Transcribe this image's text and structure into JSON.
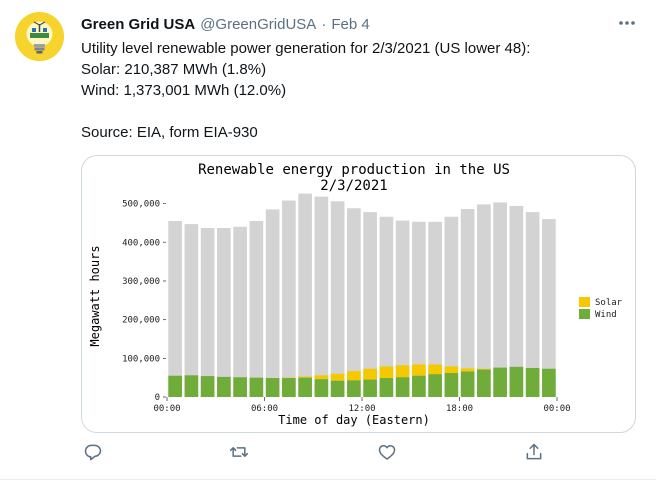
{
  "author": {
    "name": "Green Grid USA",
    "handle": "@GreenGridUSA",
    "separator": "·",
    "timestamp": "Feb 4"
  },
  "tweet": {
    "lines": [
      "Utility level renewable power generation for 2/3/2021 (US lower 48):",
      "Solar: 210,387 MWh (1.8%)",
      "Wind: 1,373,001 MWh (12.0%)",
      "",
      "Source: EIA, form EIA-930"
    ]
  },
  "icons": {
    "more": "more-icon",
    "reply": "reply-icon",
    "retweet": "retweet-icon",
    "like": "heart-icon",
    "share": "share-icon"
  },
  "colors": {
    "total": "#d3d3d3",
    "solar": "#f5c800",
    "wind": "#6fac3a",
    "icon_gray": "#5b7083"
  },
  "chart_data": {
    "type": "bar",
    "title": "Renewable energy production in the US",
    "subtitle": "2/3/2021",
    "xlabel": "Time of day (Eastern)",
    "ylabel": "Megawatt hours",
    "ylim": [
      0,
      530000
    ],
    "ytick_values": [
      0,
      100000,
      200000,
      300000,
      400000,
      500000
    ],
    "ytick_labels": [
      "0",
      "100,000",
      "200,000",
      "300,000",
      "400,000",
      "500,000"
    ],
    "xtick_labels": [
      "00:00",
      "06:00",
      "12:00",
      "18:00",
      "00:00"
    ],
    "xtick_hours": [
      0,
      6,
      12,
      18,
      24
    ],
    "x": [
      0,
      1,
      2,
      3,
      4,
      5,
      6,
      7,
      8,
      9,
      10,
      11,
      12,
      13,
      14,
      15,
      16,
      17,
      18,
      19,
      20,
      21,
      22,
      23
    ],
    "legend_position": "right",
    "grid": false,
    "series": [
      {
        "name": "Total",
        "values": [
          455000,
          447000,
          437000,
          437000,
          440000,
          455000,
          485000,
          508000,
          526000,
          518000,
          506000,
          488000,
          478000,
          466000,
          456000,
          453000,
          453000,
          466000,
          486000,
          498000,
          503000,
          494000,
          478000,
          460000
        ]
      },
      {
        "name": "Solar",
        "values": [
          0,
          0,
          0,
          0,
          0,
          0,
          0,
          1000,
          3000,
          10000,
          18000,
          24000,
          28000,
          30000,
          31000,
          29000,
          25000,
          17000,
          8000,
          2000,
          0,
          0,
          0,
          0
        ]
      },
      {
        "name": "Wind",
        "values": [
          55000,
          56000,
          54000,
          52000,
          51000,
          50000,
          49000,
          49000,
          50000,
          46000,
          42000,
          43000,
          45000,
          49000,
          51000,
          55000,
          59000,
          62000,
          66000,
          71000,
          76000,
          78000,
          75000,
          73000
        ]
      }
    ]
  }
}
